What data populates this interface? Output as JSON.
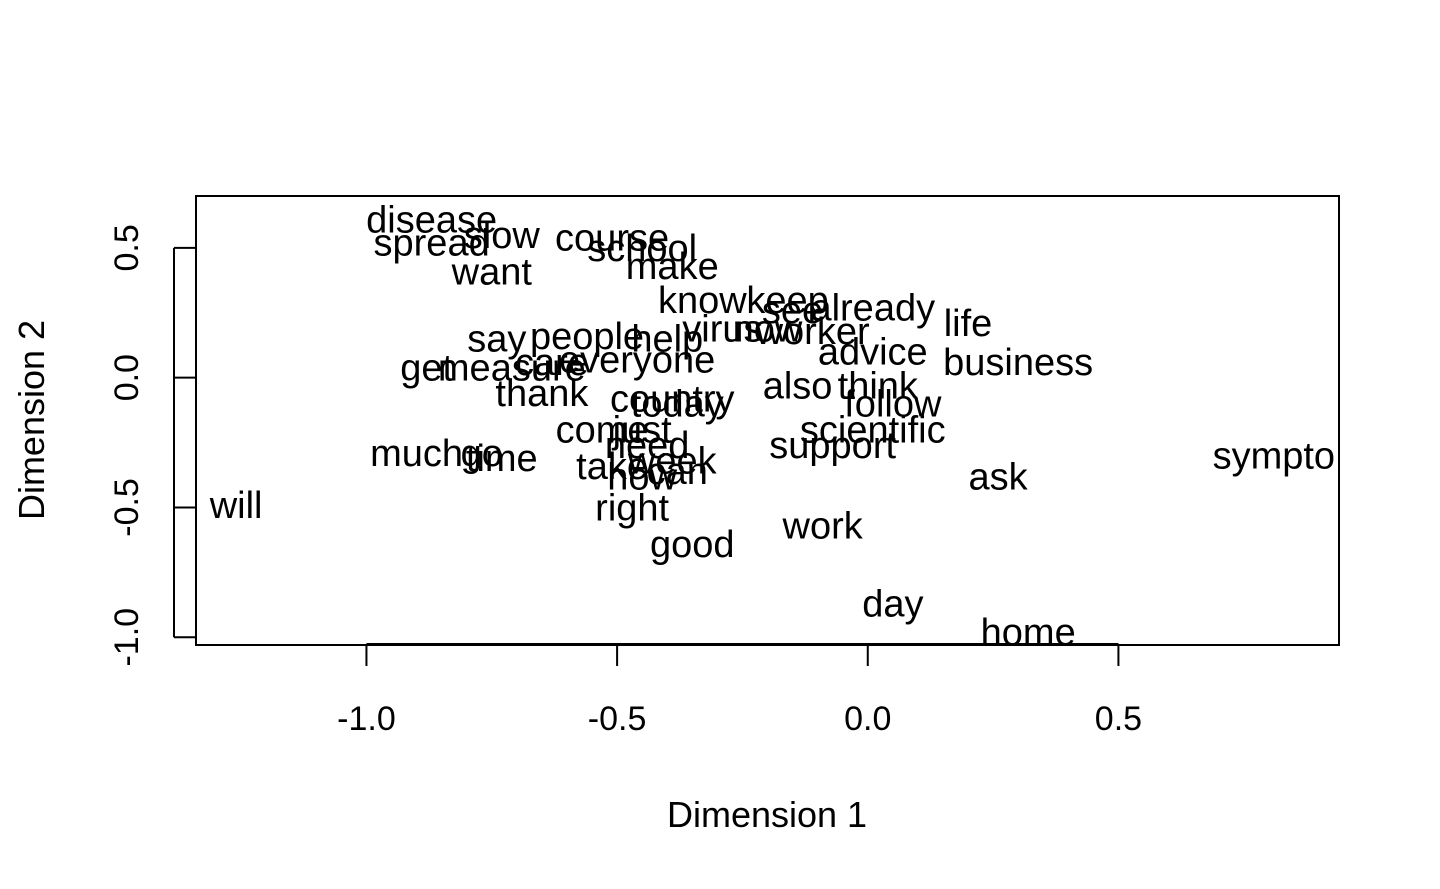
{
  "chart_data": {
    "type": "scatter",
    "title": "",
    "xlabel": "Dimension 1",
    "ylabel": "Dimension 2",
    "xlim": [
      -1.34,
      0.94
    ],
    "ylim": [
      -1.03,
      0.7
    ],
    "xticks": [
      -1.0,
      -0.5,
      0.0,
      0.5
    ],
    "xtick_labels": [
      "-1.0",
      "-0.5",
      "0.0",
      "0.5"
    ],
    "yticks": [
      -1.0,
      -0.5,
      0.0,
      0.5
    ],
    "ytick_labels": [
      "-1.0",
      "-0.5",
      "0.0",
      "0.5"
    ],
    "grid": false,
    "marker": "text-labels",
    "points": [
      {
        "label": "disease",
        "x": -0.87,
        "y": 0.61
      },
      {
        "label": "slow",
        "x": -0.73,
        "y": 0.55
      },
      {
        "label": "spread",
        "x": -0.87,
        "y": 0.52
      },
      {
        "label": "course",
        "x": -0.51,
        "y": 0.54
      },
      {
        "label": "school",
        "x": -0.45,
        "y": 0.5
      },
      {
        "label": "make",
        "x": -0.39,
        "y": 0.43
      },
      {
        "label": "want",
        "x": -0.75,
        "y": 0.41
      },
      {
        "label": "know",
        "x": -0.33,
        "y": 0.3
      },
      {
        "label": "keep",
        "x": -0.16,
        "y": 0.3
      },
      {
        "label": "already",
        "x": 0.01,
        "y": 0.27
      },
      {
        "label": "see",
        "x": -0.15,
        "y": 0.26
      },
      {
        "label": "life",
        "x": 0.2,
        "y": 0.21
      },
      {
        "label": "virus",
        "x": -0.29,
        "y": 0.19
      },
      {
        "label": "now",
        "x": -0.2,
        "y": 0.19
      },
      {
        "label": "worker",
        "x": -0.11,
        "y": 0.18
      },
      {
        "label": "people",
        "x": -0.56,
        "y": 0.16
      },
      {
        "label": "help",
        "x": -0.4,
        "y": 0.15
      },
      {
        "label": "say",
        "x": -0.74,
        "y": 0.15
      },
      {
        "label": "advice",
        "x": 0.01,
        "y": 0.1
      },
      {
        "label": "business",
        "x": 0.3,
        "y": 0.06
      },
      {
        "label": "care",
        "x": -0.63,
        "y": 0.06
      },
      {
        "label": "everyone",
        "x": -0.46,
        "y": 0.07
      },
      {
        "label": "measure",
        "x": -0.71,
        "y": 0.04
      },
      {
        "label": "get",
        "x": -0.88,
        "y": 0.04
      },
      {
        "label": "also",
        "x": -0.14,
        "y": -0.03
      },
      {
        "label": "think",
        "x": 0.02,
        "y": -0.03
      },
      {
        "label": "thank",
        "x": -0.65,
        "y": -0.06
      },
      {
        "label": "country",
        "x": -0.39,
        "y": -0.08
      },
      {
        "label": "today",
        "x": -0.38,
        "y": -0.1
      },
      {
        "label": "follow",
        "x": 0.05,
        "y": -0.1
      },
      {
        "label": "scientific",
        "x": 0.01,
        "y": -0.2
      },
      {
        "label": "come",
        "x": -0.53,
        "y": -0.2
      },
      {
        "label": "just",
        "x": -0.45,
        "y": -0.2
      },
      {
        "label": "support",
        "x": -0.07,
        "y": -0.26
      },
      {
        "label": "need",
        "x": -0.44,
        "y": -0.26
      },
      {
        "label": "much",
        "x": -0.9,
        "y": -0.29
      },
      {
        "label": "go",
        "x": -0.77,
        "y": -0.29
      },
      {
        "label": "time",
        "x": -0.73,
        "y": -0.31
      },
      {
        "label": "week",
        "x": -0.39,
        "y": -0.32
      },
      {
        "label": "take",
        "x": -0.51,
        "y": -0.34
      },
      {
        "label": "can",
        "x": -0.38,
        "y": -0.36
      },
      {
        "label": "how",
        "x": -0.45,
        "y": -0.38
      },
      {
        "label": "sympto",
        "x": 0.81,
        "y": -0.3
      },
      {
        "label": "ask",
        "x": 0.26,
        "y": -0.38
      },
      {
        "label": "right",
        "x": -0.47,
        "y": -0.5
      },
      {
        "label": "will",
        "x": -1.26,
        "y": -0.49
      },
      {
        "label": "work",
        "x": -0.09,
        "y": -0.57
      },
      {
        "label": "good",
        "x": -0.35,
        "y": -0.64
      },
      {
        "label": "day",
        "x": 0.05,
        "y": -0.87
      },
      {
        "label": "home",
        "x": 0.32,
        "y": -0.98
      }
    ]
  }
}
